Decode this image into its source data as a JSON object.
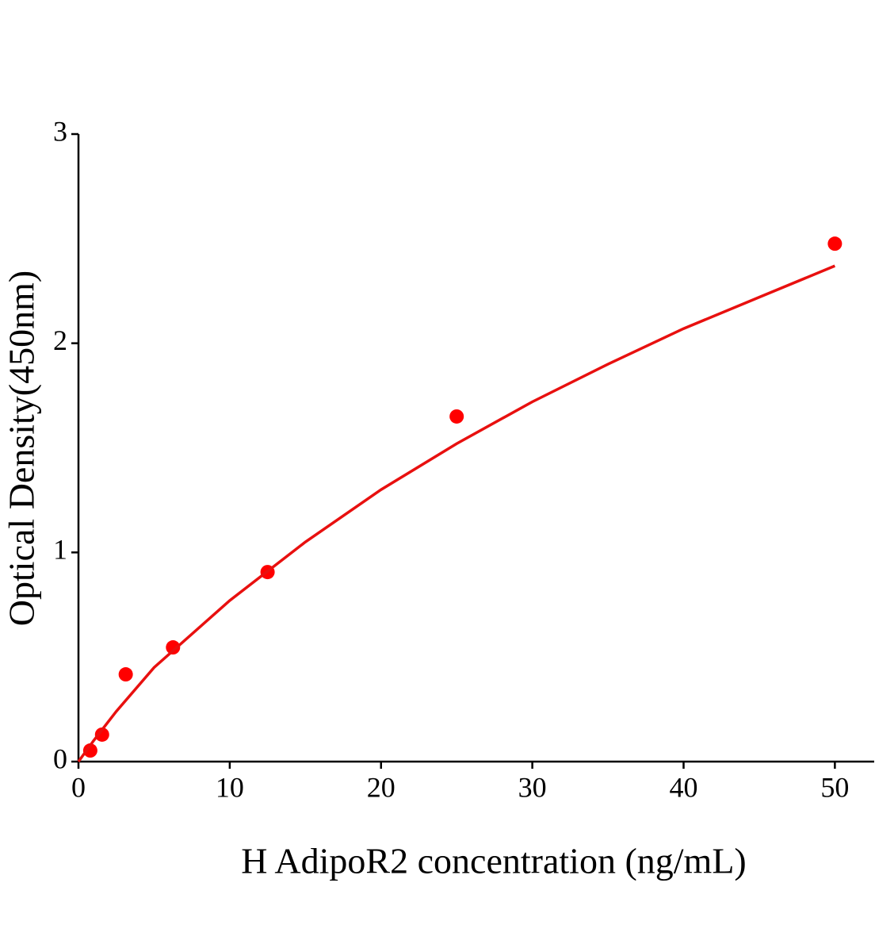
{
  "chart_data": {
    "type": "scatter",
    "x_label": "H AdipoR2 concentration (ng/mL)",
    "y_label": "Optical Density(450nm)",
    "xlim": [
      0,
      52.6
    ],
    "ylim": [
      0,
      3
    ],
    "xticks": [
      0,
      10,
      20,
      30,
      40,
      50
    ],
    "yticks": [
      0,
      1,
      2,
      3
    ],
    "series": [
      {
        "type": "scatter",
        "color": "#ff0000",
        "x": [
          0.78,
          1.56,
          3.125,
          6.25,
          12.5,
          25,
          50
        ],
        "values": [
          0.053,
          0.129,
          0.417,
          0.546,
          0.906,
          1.65,
          2.476
        ]
      },
      {
        "type": "line",
        "color": "#e8100f",
        "x": [
          0,
          1,
          2.5,
          5,
          10,
          15,
          20,
          25,
          30,
          35,
          40,
          45,
          50
        ],
        "values": [
          0,
          0.1,
          0.24,
          0.45,
          0.77,
          1.05,
          1.3,
          1.52,
          1.72,
          1.9,
          2.07,
          2.22,
          2.37
        ]
      }
    ]
  }
}
